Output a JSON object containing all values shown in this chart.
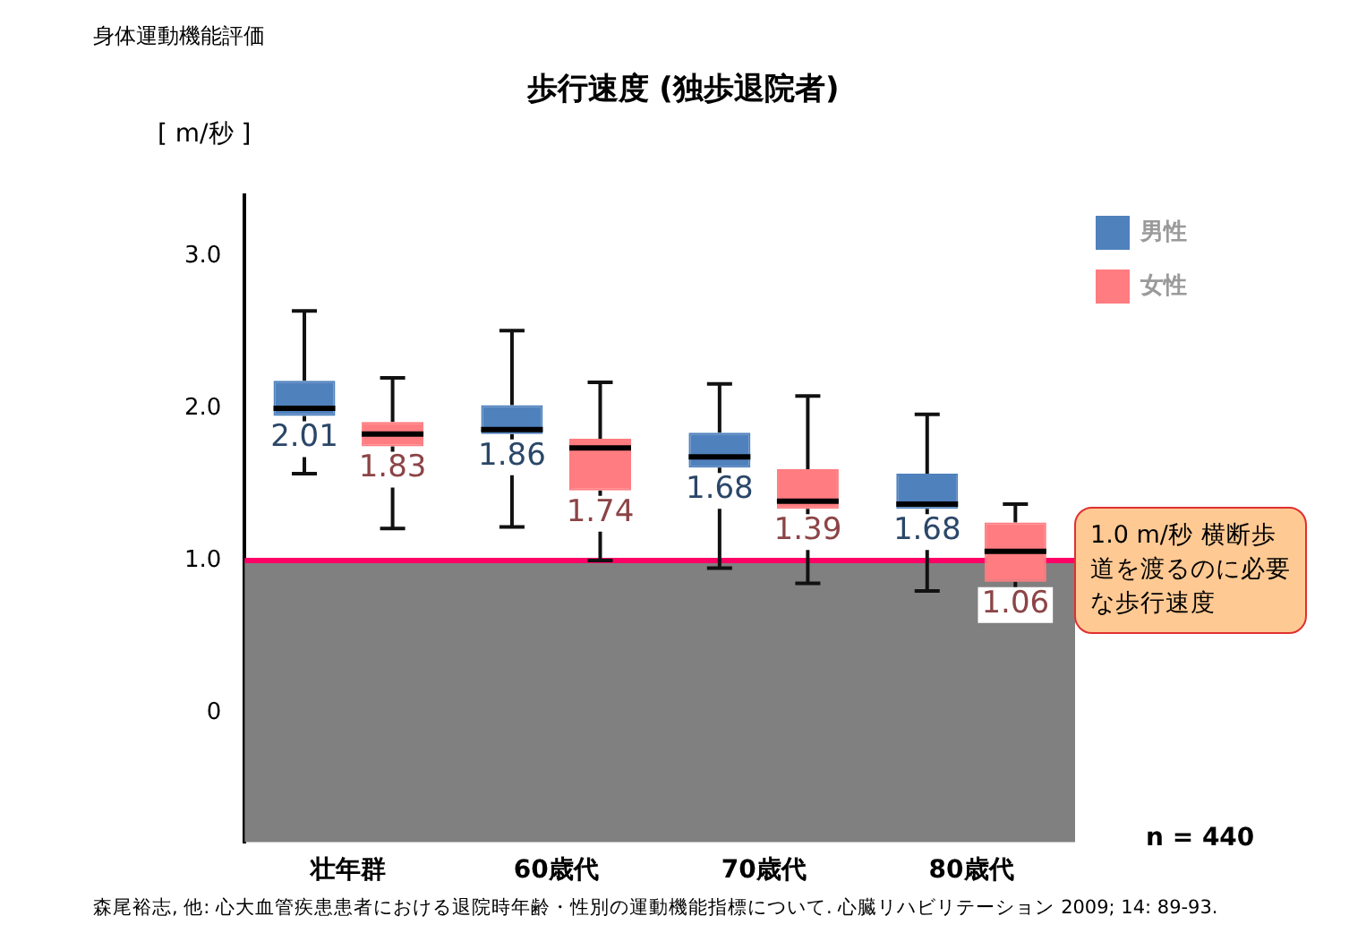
{
  "chart_data": {
    "type": "box",
    "subtitle": "身体運動機能評価",
    "title": "歩行速度 (独歩退院者)",
    "ylabel": "[ m/秒 ]",
    "categories": [
      "壮年群",
      "60歳代",
      "70歳代",
      "80歳代"
    ],
    "series": [
      {
        "name": "男性",
        "color": "#4f81bd",
        "value_labels": [
          "2.01",
          "1.86",
          "1.68",
          "1.68"
        ],
        "boxes": [
          {
            "low": 1.57,
            "q1": 1.95,
            "median": 2.0,
            "q3": 2.18,
            "high": 2.64
          },
          {
            "low": 1.22,
            "q1": 1.83,
            "median": 1.86,
            "q3": 2.02,
            "high": 2.51
          },
          {
            "low": 0.95,
            "q1": 1.61,
            "median": 1.68,
            "q3": 1.84,
            "high": 2.16
          },
          {
            "low": 0.8,
            "q1": 1.34,
            "median": 1.37,
            "q3": 1.57,
            "high": 1.96
          }
        ]
      },
      {
        "name": "女性",
        "color": "#ff7c80",
        "value_labels": [
          "1.83",
          "1.74",
          "1.39",
          "1.06"
        ],
        "boxes": [
          {
            "low": 1.21,
            "q1": 1.75,
            "median": 1.83,
            "q3": 1.91,
            "high": 2.2
          },
          {
            "low": 1.0,
            "q1": 1.46,
            "median": 1.74,
            "q3": 1.8,
            "high": 2.17
          },
          {
            "low": 0.85,
            "q1": 1.34,
            "median": 1.39,
            "q3": 1.6,
            "high": 2.08
          },
          {
            "low": 0.75,
            "q1": 0.86,
            "median": 1.06,
            "q3": 1.25,
            "high": 1.37
          }
        ]
      }
    ],
    "ylim": [
      -0.85,
      3.4
    ],
    "yticks": [
      0,
      {
        "value": 1,
        "label": "1.0"
      },
      {
        "value": 2,
        "label": "2.0"
      },
      {
        "value": 3,
        "label": "3.0"
      }
    ],
    "grid": false,
    "legend": "top right",
    "ref_lines": [
      {
        "axis": "y",
        "value": 1.0,
        "label": "1.0 m/秒 横断歩道を渡るのに必要な歩行速度",
        "color": "#ff0066"
      }
    ],
    "bands": [
      {
        "axis": "y",
        "from": -0.85,
        "to": 1.0,
        "color": "#808080"
      }
    ],
    "annotations": [
      "n = 440",
      "森尾裕志, 他: 心大血管疾患患者における退院時年齢・性別の運動機能指標について. 心臓リハビリテーション 2009; 14: 89-93."
    ]
  }
}
